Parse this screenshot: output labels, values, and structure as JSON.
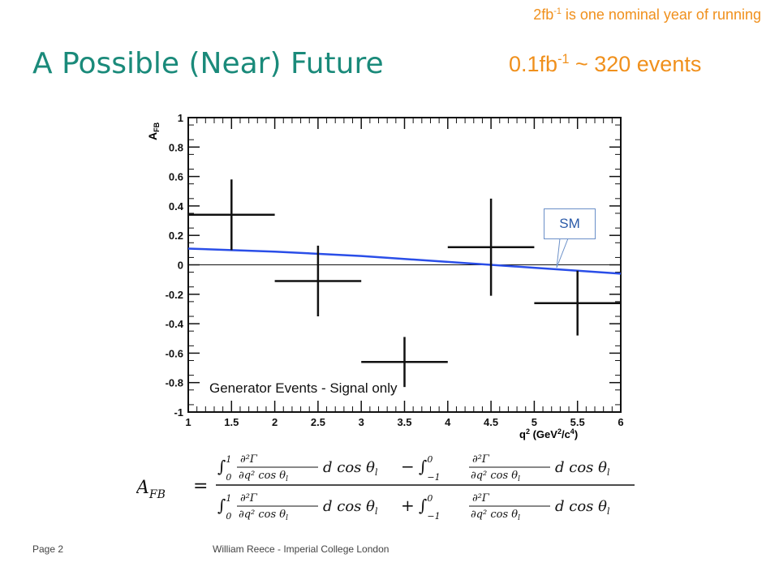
{
  "header": {
    "note": {
      "pre": "2fb",
      "sup": "-1",
      "post": " is one nominal year of running"
    },
    "title": "A Possible (Near) Future",
    "events": {
      "pre": "0.1fb",
      "sup": "-1",
      "post": " ~ 320 events"
    }
  },
  "chart_data": {
    "type": "scatter",
    "ylabel": "A_FB",
    "xlabel": "q² (GeV²/c⁴)",
    "xlim": [
      1,
      6
    ],
    "ylim": [
      -1,
      1
    ],
    "x_ticks": [
      "1",
      "1.5",
      "2",
      "2.5",
      "3",
      "3.5",
      "4",
      "4.5",
      "5",
      "5.5",
      "6"
    ],
    "y_ticks": [
      "1",
      "0.8",
      "0.6",
      "0.4",
      "0.2",
      "0",
      "-0.2",
      "-0.4",
      "-0.6",
      "-0.8",
      "-1"
    ],
    "annotation": "Generator Events - Signal only",
    "points": [
      {
        "x": 1.5,
        "y": 0.34,
        "xerr": 0.5,
        "yerr": 0.24
      },
      {
        "x": 2.5,
        "y": -0.11,
        "xerr": 0.5,
        "yerr": 0.24
      },
      {
        "x": 3.5,
        "y": -0.66,
        "xerr": 0.5,
        "yerr": 0.17
      },
      {
        "x": 4.5,
        "y": 0.12,
        "xerr": 0.5,
        "yerr": 0.33
      },
      {
        "x": 5.5,
        "y": -0.26,
        "xerr": 0.5,
        "yerr": 0.22
      }
    ],
    "sm_curve": {
      "name": "SM",
      "x": [
        1,
        2,
        3,
        4,
        5,
        6
      ],
      "y": [
        0.11,
        0.09,
        0.06,
        0.02,
        -0.02,
        -0.06
      ],
      "color": "#2a4ee8"
    },
    "grid": false
  },
  "sm_label": "SM",
  "footer": {
    "page": "Page 2",
    "author": "William Reece - Imperial College London"
  },
  "colors": {
    "title": "#1a8a7a",
    "accent": "#f0901c",
    "curve": "#2a4ee8"
  }
}
